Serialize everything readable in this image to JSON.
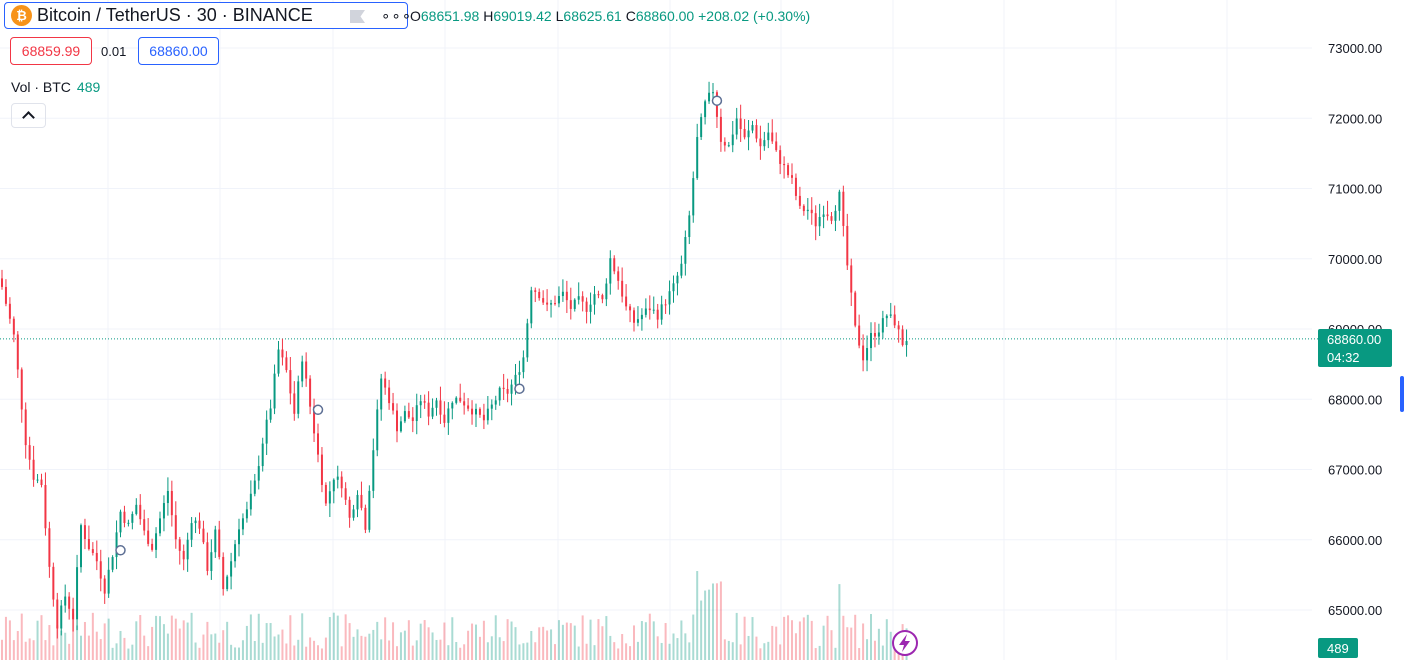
{
  "header": {
    "coin_glyph": "₿",
    "title": "Bitcoin / TetherUS · 30 · BINANCE",
    "more_label": "∘∘∘",
    "ohlc": {
      "o_label": "O",
      "o": "68651.98",
      "h_label": "H",
      "h": "69019.42",
      "l_label": "L",
      "l": "68625.61",
      "c_label": "C",
      "c": "68860.00",
      "change": "+208.02 (+0.30%)"
    }
  },
  "trade": {
    "sell": "68859.99",
    "spread": "0.01",
    "buy": "68860.00"
  },
  "volume_legend": {
    "label": "Vol · BTC",
    "value": "489"
  },
  "colors": {
    "up": "#089981",
    "down": "#f23645",
    "accent": "#2962ff",
    "grid": "#f0f3fa",
    "marker": "#9c27b0"
  },
  "chart_data": {
    "type": "candlestick",
    "title": "Bitcoin / TetherUS · 30 · BINANCE",
    "y_axis": {
      "min": 64300,
      "max": 73600,
      "ticks": [
        65000,
        66000,
        67000,
        68000,
        69000,
        70000,
        71000,
        72000,
        73000
      ],
      "tick_labels": [
        "65000.00",
        "66000.00",
        "67000.00",
        "68000.00",
        "69000.00",
        "70000.00",
        "71000.00",
        "72000.00",
        "73000.00"
      ]
    },
    "last_price": {
      "value": 68860.0,
      "label": "68860.00",
      "countdown": "04:32"
    },
    "volume_last": {
      "value": 489,
      "label": "489"
    },
    "anchors": [
      [
        0,
        69600
      ],
      [
        3,
        68900
      ],
      [
        6,
        67400
      ],
      [
        8,
        66900
      ],
      [
        10,
        66800
      ],
      [
        12,
        65600
      ],
      [
        14,
        64800
      ],
      [
        16,
        65200
      ],
      [
        18,
        64900
      ],
      [
        20,
        66200
      ],
      [
        22,
        65900
      ],
      [
        24,
        65700
      ],
      [
        26,
        65300
      ],
      [
        28,
        65800
      ],
      [
        30,
        66400
      ],
      [
        32,
        66200
      ],
      [
        34,
        66500
      ],
      [
        36,
        66100
      ],
      [
        38,
        65900
      ],
      [
        40,
        66300
      ],
      [
        42,
        66700
      ],
      [
        44,
        66000
      ],
      [
        46,
        65700
      ],
      [
        48,
        66300
      ],
      [
        50,
        66200
      ],
      [
        52,
        65600
      ],
      [
        54,
        66100
      ],
      [
        56,
        65300
      ],
      [
        58,
        65700
      ],
      [
        60,
        66200
      ],
      [
        62,
        66400
      ],
      [
        64,
        66800
      ],
      [
        66,
        67400
      ],
      [
        68,
        67900
      ],
      [
        70,
        68700
      ],
      [
        72,
        68400
      ],
      [
        74,
        67800
      ],
      [
        76,
        68600
      ],
      [
        78,
        67900
      ],
      [
        80,
        67200
      ],
      [
        82,
        66500
      ],
      [
        84,
        66900
      ],
      [
        86,
        66800
      ],
      [
        88,
        66300
      ],
      [
        90,
        66700
      ],
      [
        92,
        66200
      ],
      [
        94,
        67300
      ],
      [
        96,
        68300
      ],
      [
        98,
        68000
      ],
      [
        100,
        67600
      ],
      [
        102,
        67800
      ],
      [
        104,
        67700
      ],
      [
        106,
        68000
      ],
      [
        108,
        67800
      ],
      [
        110,
        68000
      ],
      [
        112,
        67700
      ],
      [
        114,
        68000
      ],
      [
        116,
        68000
      ],
      [
        118,
        67900
      ],
      [
        120,
        67800
      ],
      [
        122,
        67700
      ],
      [
        124,
        67900
      ],
      [
        126,
        68100
      ],
      [
        128,
        68100
      ],
      [
        130,
        68300
      ],
      [
        132,
        68600
      ],
      [
        134,
        69600
      ],
      [
        136,
        69500
      ],
      [
        138,
        69300
      ],
      [
        140,
        69400
      ],
      [
        142,
        69500
      ],
      [
        144,
        69300
      ],
      [
        146,
        69400
      ],
      [
        148,
        69300
      ],
      [
        150,
        69500
      ],
      [
        152,
        69400
      ],
      [
        154,
        70000
      ],
      [
        156,
        69700
      ],
      [
        158,
        69300
      ],
      [
        160,
        69100
      ],
      [
        162,
        69200
      ],
      [
        164,
        69300
      ],
      [
        166,
        69200
      ],
      [
        168,
        69400
      ],
      [
        170,
        69600
      ],
      [
        172,
        69900
      ],
      [
        174,
        70600
      ],
      [
        176,
        71700
      ],
      [
        178,
        72200
      ],
      [
        180,
        72400
      ],
      [
        182,
        71700
      ],
      [
        184,
        71600
      ],
      [
        186,
        72000
      ],
      [
        188,
        71700
      ],
      [
        190,
        71900
      ],
      [
        192,
        71600
      ],
      [
        194,
        71800
      ],
      [
        196,
        71500
      ],
      [
        198,
        71300
      ],
      [
        200,
        71100
      ],
      [
        202,
        70700
      ],
      [
        204,
        70700
      ],
      [
        206,
        70500
      ],
      [
        208,
        70700
      ],
      [
        210,
        70600
      ],
      [
        212,
        70900
      ],
      [
        214,
        69900
      ],
      [
        216,
        69000
      ],
      [
        218,
        68600
      ],
      [
        220,
        68900
      ],
      [
        222,
        69000
      ],
      [
        224,
        69200
      ],
      [
        226,
        69100
      ],
      [
        228,
        68800
      ],
      [
        229,
        68860
      ]
    ],
    "volume_range": [
      0,
      1000
    ],
    "event_markers": [
      [
        30,
        65850
      ],
      [
        80,
        67850
      ],
      [
        131,
        68150
      ],
      [
        181,
        72250
      ]
    ]
  }
}
